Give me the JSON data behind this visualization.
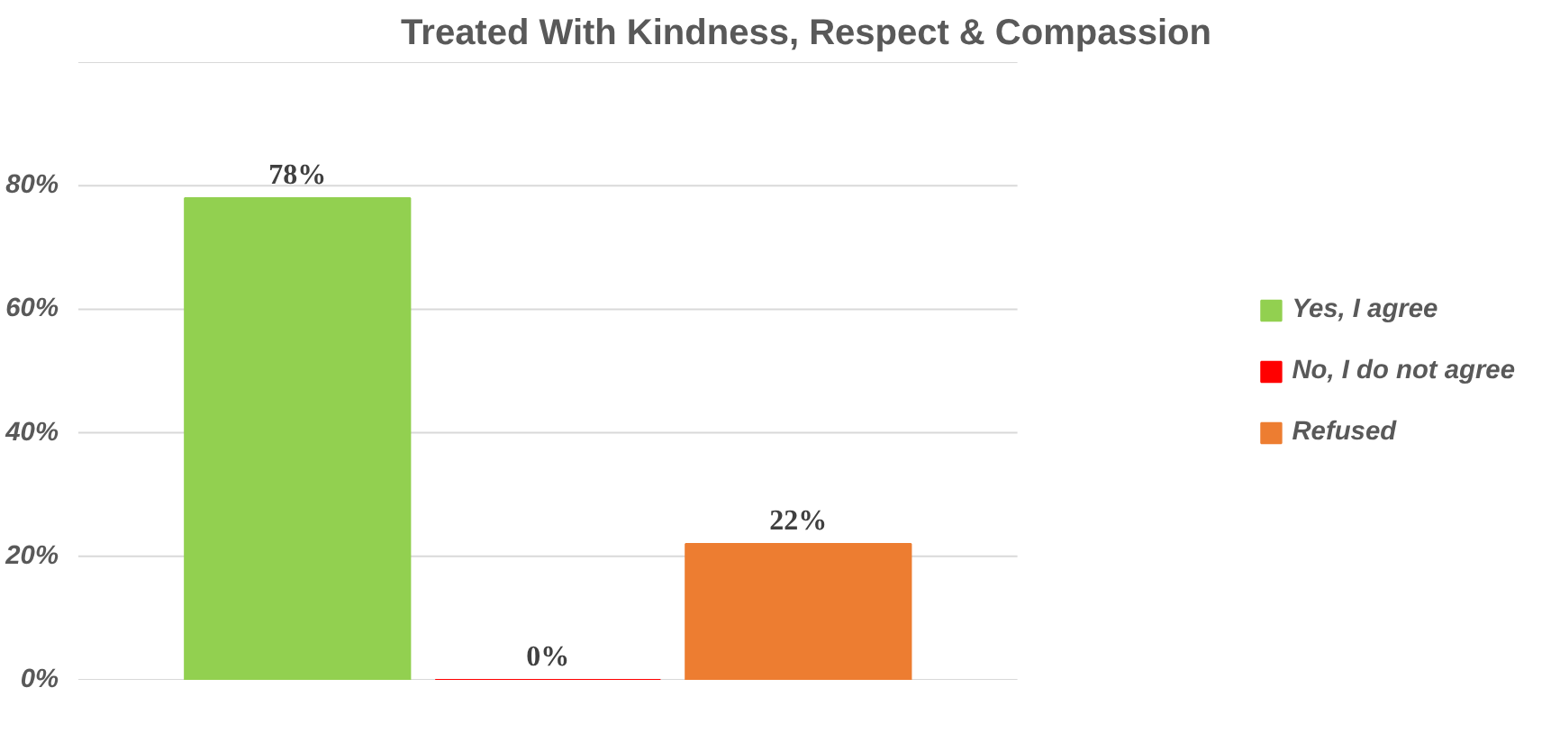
{
  "chart_data": {
    "type": "bar",
    "title": "Treated With Kindness, Respect & Compassion",
    "categories": [
      null
    ],
    "series": [
      {
        "name": "Yes, I agree",
        "color": "#92d050",
        "values": [
          78
        ],
        "value_labels": [
          "78%"
        ]
      },
      {
        "name": "No, I do not agree",
        "color": "#ff0000",
        "values": [
          0
        ],
        "value_labels": [
          "0%"
        ]
      },
      {
        "name": "Refused",
        "color": "#ed7d31",
        "values": [
          22
        ],
        "value_labels": [
          "22%"
        ]
      }
    ],
    "ylim": [
      0,
      100
    ],
    "yticks": [
      {
        "value": 0,
        "label": "0%"
      },
      {
        "value": 20,
        "label": "20%"
      },
      {
        "value": 40,
        "label": "40%"
      },
      {
        "value": 60,
        "label": "60%"
      },
      {
        "value": 80,
        "label": "80%"
      },
      {
        "value": 100,
        "label": null
      }
    ],
    "tick_labels": "y",
    "grid": "y",
    "legend": "right"
  }
}
